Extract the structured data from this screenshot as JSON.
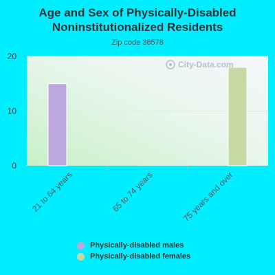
{
  "chart_data": {
    "type": "bar",
    "title": "Age and Sex of Physically-Disabled Noninstitutionalized Residents",
    "subtitle": "Zip code 36578",
    "categories": [
      "21 to 64 years",
      "65 to 74 years",
      "75 years and over"
    ],
    "series": [
      {
        "name": "Physically-disabled males",
        "color": "#bca8dd",
        "values": [
          15,
          0,
          0
        ]
      },
      {
        "name": "Physically-disabled females",
        "color": "#c4d9a4",
        "values": [
          0,
          0,
          18
        ]
      }
    ],
    "yticks": [
      0,
      10,
      20
    ],
    "ylim": [
      0,
      20
    ],
    "grid": true,
    "legend_position": "bottom"
  },
  "watermark": "City-Data.com"
}
